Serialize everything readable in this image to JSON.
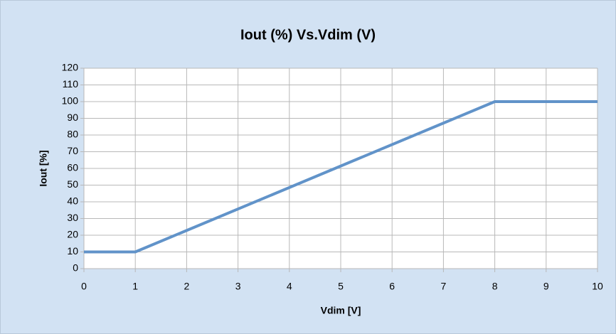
{
  "chart_data": {
    "type": "line",
    "title": "Iout (%) Vs.Vdim (V)",
    "x_label": "Vdim [V]",
    "y_label": "Iout [%]",
    "x": [
      0,
      1,
      8,
      10
    ],
    "series": [
      {
        "name": "Iout",
        "color": "#6193c9",
        "values": [
          10,
          10,
          100,
          100
        ]
      }
    ],
    "xlim": [
      0,
      10
    ],
    "xticks": [
      0,
      1,
      2,
      3,
      4,
      5,
      6,
      7,
      8,
      9,
      10
    ],
    "ylim": [
      0,
      120
    ],
    "yticks": [
      0,
      10,
      20,
      30,
      40,
      50,
      60,
      70,
      80,
      90,
      100,
      110,
      120
    ],
    "grid": true
  }
}
